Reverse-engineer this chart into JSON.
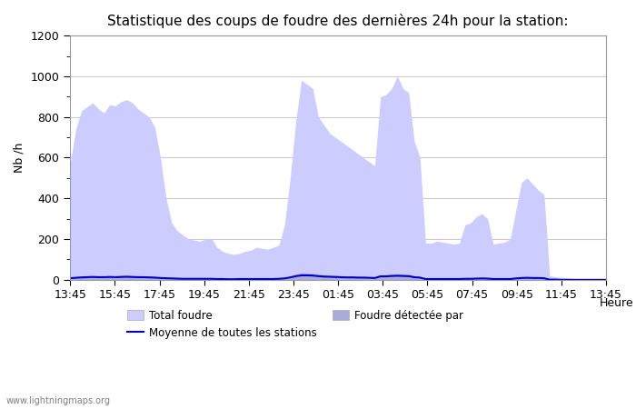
{
  "title": "Statistique des coups de foudre des dernières 24h pour la station:",
  "xlabel": "Heure",
  "ylabel": "Nb /h",
  "xlim": [
    0,
    96
  ],
  "ylim": [
    0,
    1200
  ],
  "yticks": [
    0,
    200,
    400,
    600,
    800,
    1000,
    1200
  ],
  "xtick_labels": [
    "13:45",
    "15:45",
    "17:45",
    "19:45",
    "21:45",
    "23:45",
    "01:45",
    "03:45",
    "05:45",
    "07:45",
    "09:45",
    "11:45",
    "13:45"
  ],
  "fill_color_light": "#ccccff",
  "fill_color_dark": "#aaaaee",
  "line_color": "#0000cc",
  "background_color": "#ffffff",
  "grid_color": "#cccccc",
  "watermark": "www.lightningmaps.org",
  "legend_total": "Total foudre",
  "legend_moyenne": "Moyenne de toutes les stations",
  "legend_detectee": "Foudre détectée par",
  "total_foudre": [
    570,
    740,
    830,
    850,
    870,
    840,
    820,
    860,
    855,
    875,
    885,
    870,
    840,
    820,
    800,
    750,
    600,
    400,
    280,
    240,
    220,
    200,
    195,
    190,
    200,
    205,
    160,
    140,
    130,
    125,
    130,
    140,
    145,
    160,
    155,
    150,
    160,
    170,
    270,
    500,
    780,
    980,
    960,
    940,
    800,
    760,
    720,
    700,
    680,
    660,
    640,
    620,
    600,
    580,
    560,
    900,
    910,
    940,
    1000,
    940,
    920,
    680,
    600,
    180,
    180,
    190,
    185,
    180,
    175,
    180,
    270,
    280,
    310,
    325,
    300,
    175,
    180,
    185,
    200,
    340,
    480,
    500,
    470,
    440,
    420,
    20,
    15,
    12,
    10,
    8,
    5,
    3,
    2,
    2,
    2,
    2
  ],
  "foudre_detectee": [
    10,
    15,
    18,
    20,
    22,
    20,
    19,
    21,
    20,
    22,
    23,
    22,
    20,
    19,
    18,
    16,
    14,
    12,
    10,
    9,
    8,
    8,
    7,
    7,
    8,
    8,
    6,
    5,
    5,
    5,
    5,
    5,
    5,
    6,
    6,
    6,
    6,
    7,
    10,
    18,
    28,
    35,
    33,
    32,
    28,
    25,
    23,
    22,
    20,
    19,
    18,
    17,
    16,
    15,
    14,
    25,
    26,
    28,
    30,
    28,
    27,
    20,
    17,
    5,
    5,
    5,
    5,
    5,
    5,
    5,
    8,
    8,
    9,
    10,
    9,
    5,
    5,
    5,
    6,
    10,
    14,
    15,
    13,
    13,
    12,
    1,
    1,
    0,
    0,
    0,
    0,
    0,
    0,
    0,
    0,
    0
  ],
  "moyenne_stations": [
    8,
    10,
    12,
    13,
    14,
    13,
    13,
    14,
    13,
    14,
    15,
    14,
    13,
    13,
    12,
    11,
    9,
    8,
    7,
    6,
    5,
    5,
    5,
    5,
    5,
    5,
    4,
    4,
    3,
    3,
    4,
    4,
    4,
    4,
    4,
    4,
    4,
    5,
    7,
    12,
    18,
    22,
    22,
    21,
    18,
    16,
    15,
    14,
    13,
    12,
    12,
    11,
    11,
    10,
    9,
    17,
    17,
    19,
    20,
    19,
    18,
    13,
    11,
    4,
    4,
    4,
    4,
    4,
    4,
    4,
    5,
    5,
    6,
    7,
    6,
    4,
    4,
    4,
    4,
    7,
    9,
    10,
    9,
    9,
    8,
    1,
    1,
    0,
    0,
    0,
    0,
    0,
    0,
    0,
    0,
    0
  ]
}
